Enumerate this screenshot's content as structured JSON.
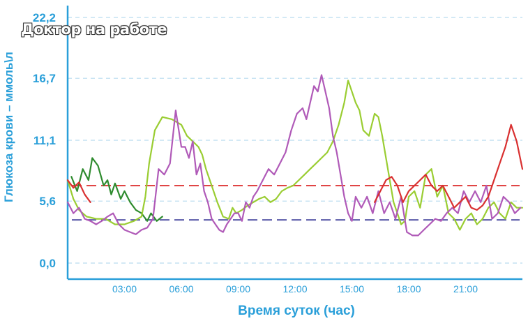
{
  "watermark": "Доктор на работе",
  "chart_data": {
    "type": "line",
    "title": "",
    "xlabel": "Время суток (час)",
    "ylabel": "Глюкоза крови – ммоль\\л",
    "xlim": [
      0,
      24
    ],
    "ylim": [
      0,
      22.2
    ],
    "yticks": [
      "0,0",
      "5,6",
      "11,1",
      "16,7",
      "22,2"
    ],
    "ytick_values": [
      0,
      5.6,
      11.1,
      16.7,
      22.2
    ],
    "xticks": [
      "03:00",
      "06:00",
      "09:00",
      "12:00",
      "15:00",
      "18:00",
      "21:00"
    ],
    "xtick_values": [
      3,
      6,
      9,
      12,
      15,
      18,
      21
    ],
    "grid": "horizontal dashed",
    "reference_lines": [
      {
        "y": 7.0,
        "color": "#e04545",
        "style": "dashed"
      },
      {
        "y": 3.9,
        "color": "#5a5aa8",
        "style": "dashed"
      }
    ],
    "series": [
      {
        "color": "#2e8b2e",
        "x": [
          0.2,
          0.5,
          0.8,
          1.1,
          1.3,
          1.6,
          1.9,
          2.1,
          2.3,
          2.5,
          2.8,
          3.0,
          3.3,
          3.6,
          3.9,
          4.2,
          4.4,
          4.7,
          5.0
        ],
        "y": [
          7.8,
          6.5,
          8.5,
          7.5,
          9.5,
          8.8,
          7.0,
          7.5,
          6.2,
          7.2,
          5.8,
          6.5,
          5.5,
          4.8,
          4.5,
          3.8,
          4.5,
          3.8,
          4.2
        ]
      },
      {
        "color": "#9acd32",
        "x": [
          0,
          0.3,
          0.6,
          1.0,
          1.5,
          2.0,
          2.5,
          3.0,
          3.5,
          3.9,
          4.1,
          4.3,
          4.6,
          5.0,
          5.5,
          6.0,
          6.3,
          6.6,
          6.9,
          7.1,
          7.3,
          7.6,
          7.9,
          8.2,
          8.5,
          8.7,
          8.9,
          9.2,
          9.5,
          9.8,
          10.1,
          10.4,
          10.7,
          11.0,
          11.3,
          11.6,
          11.9,
          12.2,
          12.5,
          12.8,
          13.1,
          13.4,
          13.7,
          14.0,
          14.3,
          14.6,
          14.8,
          15.0,
          15.2,
          15.4,
          15.6,
          15.9,
          16.2,
          16.4,
          16.6,
          16.8,
          17.0,
          17.2,
          17.4,
          17.6,
          17.8,
          18.0,
          18.3,
          18.6,
          18.9,
          19.2,
          19.5,
          19.8,
          20.1,
          20.4,
          20.7,
          21.0,
          21.3,
          21.6,
          21.9,
          22.2,
          22.5,
          22.8,
          23.1,
          23.4,
          23.7,
          24.0
        ],
        "y": [
          7.5,
          5.8,
          4.8,
          4.2,
          4.0,
          4.0,
          3.5,
          3.5,
          3.8,
          4.2,
          6.0,
          9.0,
          12.0,
          13.2,
          13.0,
          12.5,
          11.5,
          11.0,
          10.5,
          9.8,
          8.5,
          7.0,
          5.5,
          4.2,
          4.0,
          5.0,
          4.5,
          4.8,
          5.2,
          5.5,
          5.8,
          6.0,
          5.5,
          5.8,
          6.5,
          6.8,
          7.0,
          7.5,
          8.0,
          8.5,
          9.0,
          9.5,
          10.0,
          11.0,
          12.5,
          14.5,
          16.5,
          15.5,
          14.5,
          13.8,
          12.0,
          11.5,
          13.5,
          13.2,
          11.5,
          9.5,
          7.5,
          5.5,
          4.5,
          3.5,
          3.8,
          6.0,
          6.5,
          5.0,
          8.0,
          8.5,
          6.0,
          7.0,
          4.5,
          4.0,
          3.0,
          4.0,
          4.5,
          3.5,
          4.0,
          5.0,
          5.5,
          4.5,
          4.0,
          5.5,
          5.0,
          5.0
        ]
      },
      {
        "color": "#b05ab8",
        "x": [
          0,
          0.3,
          0.6,
          0.9,
          1.2,
          1.5,
          1.8,
          2.1,
          2.4,
          2.7,
          3.0,
          3.3,
          3.6,
          3.9,
          4.2,
          4.5,
          4.8,
          5.1,
          5.4,
          5.7,
          6.0,
          6.2,
          6.4,
          6.6,
          6.8,
          7.0,
          7.2,
          7.4,
          7.6,
          7.8,
          8.0,
          8.2,
          8.4,
          8.6,
          8.8,
          9.0,
          9.2,
          9.4,
          9.6,
          9.8,
          10.0,
          10.3,
          10.6,
          10.9,
          11.2,
          11.5,
          11.8,
          12.1,
          12.4,
          12.6,
          12.8,
          13.0,
          13.2,
          13.4,
          13.6,
          13.8,
          14.0,
          14.2,
          14.4,
          14.6,
          14.8,
          15.0,
          15.2,
          15.5,
          15.8,
          16.1,
          16.4,
          16.7,
          17.0,
          17.3,
          17.6,
          17.9,
          18.2,
          18.5,
          18.8,
          19.1,
          19.4,
          19.7,
          20.0,
          20.3,
          20.6,
          20.9,
          21.2,
          21.5,
          21.8,
          22.1,
          22.4,
          22.7,
          23.0,
          23.3,
          23.6,
          23.9
        ],
        "y": [
          5.5,
          4.5,
          5.0,
          4.0,
          3.8,
          3.5,
          3.8,
          4.2,
          4.5,
          3.5,
          3.0,
          2.8,
          2.6,
          3.0,
          3.2,
          4.0,
          8.5,
          8.0,
          9.0,
          13.8,
          10.5,
          10.5,
          9.5,
          11.0,
          8.0,
          9.0,
          6.5,
          5.5,
          4.0,
          3.5,
          3.0,
          2.8,
          3.5,
          4.0,
          4.5,
          4.5,
          3.8,
          5.5,
          5.0,
          6.0,
          6.5,
          7.5,
          8.5,
          8.0,
          9.0,
          10.0,
          12.0,
          13.5,
          14.0,
          13.0,
          14.5,
          16.0,
          15.5,
          17.0,
          15.5,
          14.0,
          11.5,
          10.0,
          8.0,
          6.0,
          4.5,
          3.8,
          6.0,
          5.0,
          6.0,
          4.5,
          6.5,
          4.5,
          5.5,
          4.0,
          6.0,
          2.8,
          2.5,
          2.5,
          3.0,
          3.5,
          4.0,
          3.8,
          4.5,
          5.0,
          4.5,
          6.5,
          5.5,
          6.5,
          5.5,
          7.0,
          4.0,
          4.5,
          6.0,
          5.5,
          4.5,
          5.0
        ]
      },
      {
        "color": "#d93030",
        "x": [
          0,
          0.3,
          0.6,
          0.9,
          1.2
        ],
        "y": [
          7.5,
          6.8,
          7.3,
          6.2,
          5.5
        ]
      },
      {
        "color": "#d93030",
        "x": [
          16.2,
          16.5,
          16.8,
          17.1,
          17.4,
          17.7,
          18.0,
          18.3,
          18.6,
          18.9,
          19.2,
          19.5,
          19.8,
          20.1,
          20.4,
          20.7,
          21.0,
          21.3,
          21.6,
          21.9,
          22.2,
          22.5,
          22.8,
          23.1,
          23.4,
          23.7,
          24.0
        ],
        "y": [
          5.5,
          6.5,
          7.5,
          7.8,
          7.0,
          5.5,
          6.5,
          7.0,
          7.5,
          8.0,
          7.0,
          6.5,
          7.0,
          6.0,
          5.0,
          5.5,
          6.0,
          5.0,
          4.8,
          5.2,
          6.0,
          7.5,
          9.0,
          10.5,
          12.5,
          11.0,
          8.5
        ]
      }
    ]
  }
}
